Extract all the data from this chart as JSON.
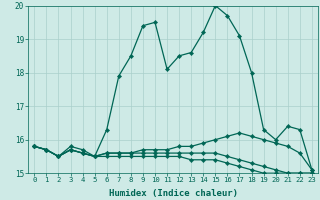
{
  "xlabel": "Humidex (Indice chaleur)",
  "ylabel": "",
  "xlim": [
    -0.5,
    23.5
  ],
  "ylim": [
    15,
    20
  ],
  "yticks": [
    15,
    16,
    17,
    18,
    19,
    20
  ],
  "xticks": [
    0,
    1,
    2,
    3,
    4,
    5,
    6,
    7,
    8,
    9,
    10,
    11,
    12,
    13,
    14,
    15,
    16,
    17,
    18,
    19,
    20,
    21,
    22,
    23
  ],
  "bg_color": "#ceeae6",
  "grid_color": "#aacfcb",
  "line_color": "#006655",
  "lines": [
    [
      15.8,
      15.7,
      15.5,
      15.8,
      15.7,
      15.5,
      16.3,
      17.9,
      18.5,
      19.4,
      19.5,
      18.1,
      18.5,
      18.6,
      19.2,
      20.0,
      19.7,
      19.1,
      18.0,
      16.3,
      16.0,
      16.4,
      16.3,
      15.1
    ],
    [
      15.8,
      15.7,
      15.5,
      15.7,
      15.6,
      15.5,
      15.6,
      15.6,
      15.6,
      15.7,
      15.7,
      15.7,
      15.8,
      15.8,
      15.9,
      16.0,
      16.1,
      16.2,
      16.1,
      16.0,
      15.9,
      15.8,
      15.6,
      15.1
    ],
    [
      15.8,
      15.7,
      15.5,
      15.7,
      15.6,
      15.5,
      15.6,
      15.6,
      15.6,
      15.6,
      15.6,
      15.6,
      15.6,
      15.6,
      15.6,
      15.6,
      15.5,
      15.4,
      15.3,
      15.2,
      15.1,
      15.0,
      15.0,
      15.0
    ],
    [
      15.8,
      15.7,
      15.5,
      15.7,
      15.6,
      15.5,
      15.5,
      15.5,
      15.5,
      15.5,
      15.5,
      15.5,
      15.5,
      15.4,
      15.4,
      15.4,
      15.3,
      15.2,
      15.1,
      15.0,
      15.0,
      15.0,
      15.0,
      15.0
    ]
  ],
  "tick_fontsize": 5.2,
  "xlabel_fontsize": 6.5,
  "marker_size": 2.2,
  "linewidth": 0.9
}
